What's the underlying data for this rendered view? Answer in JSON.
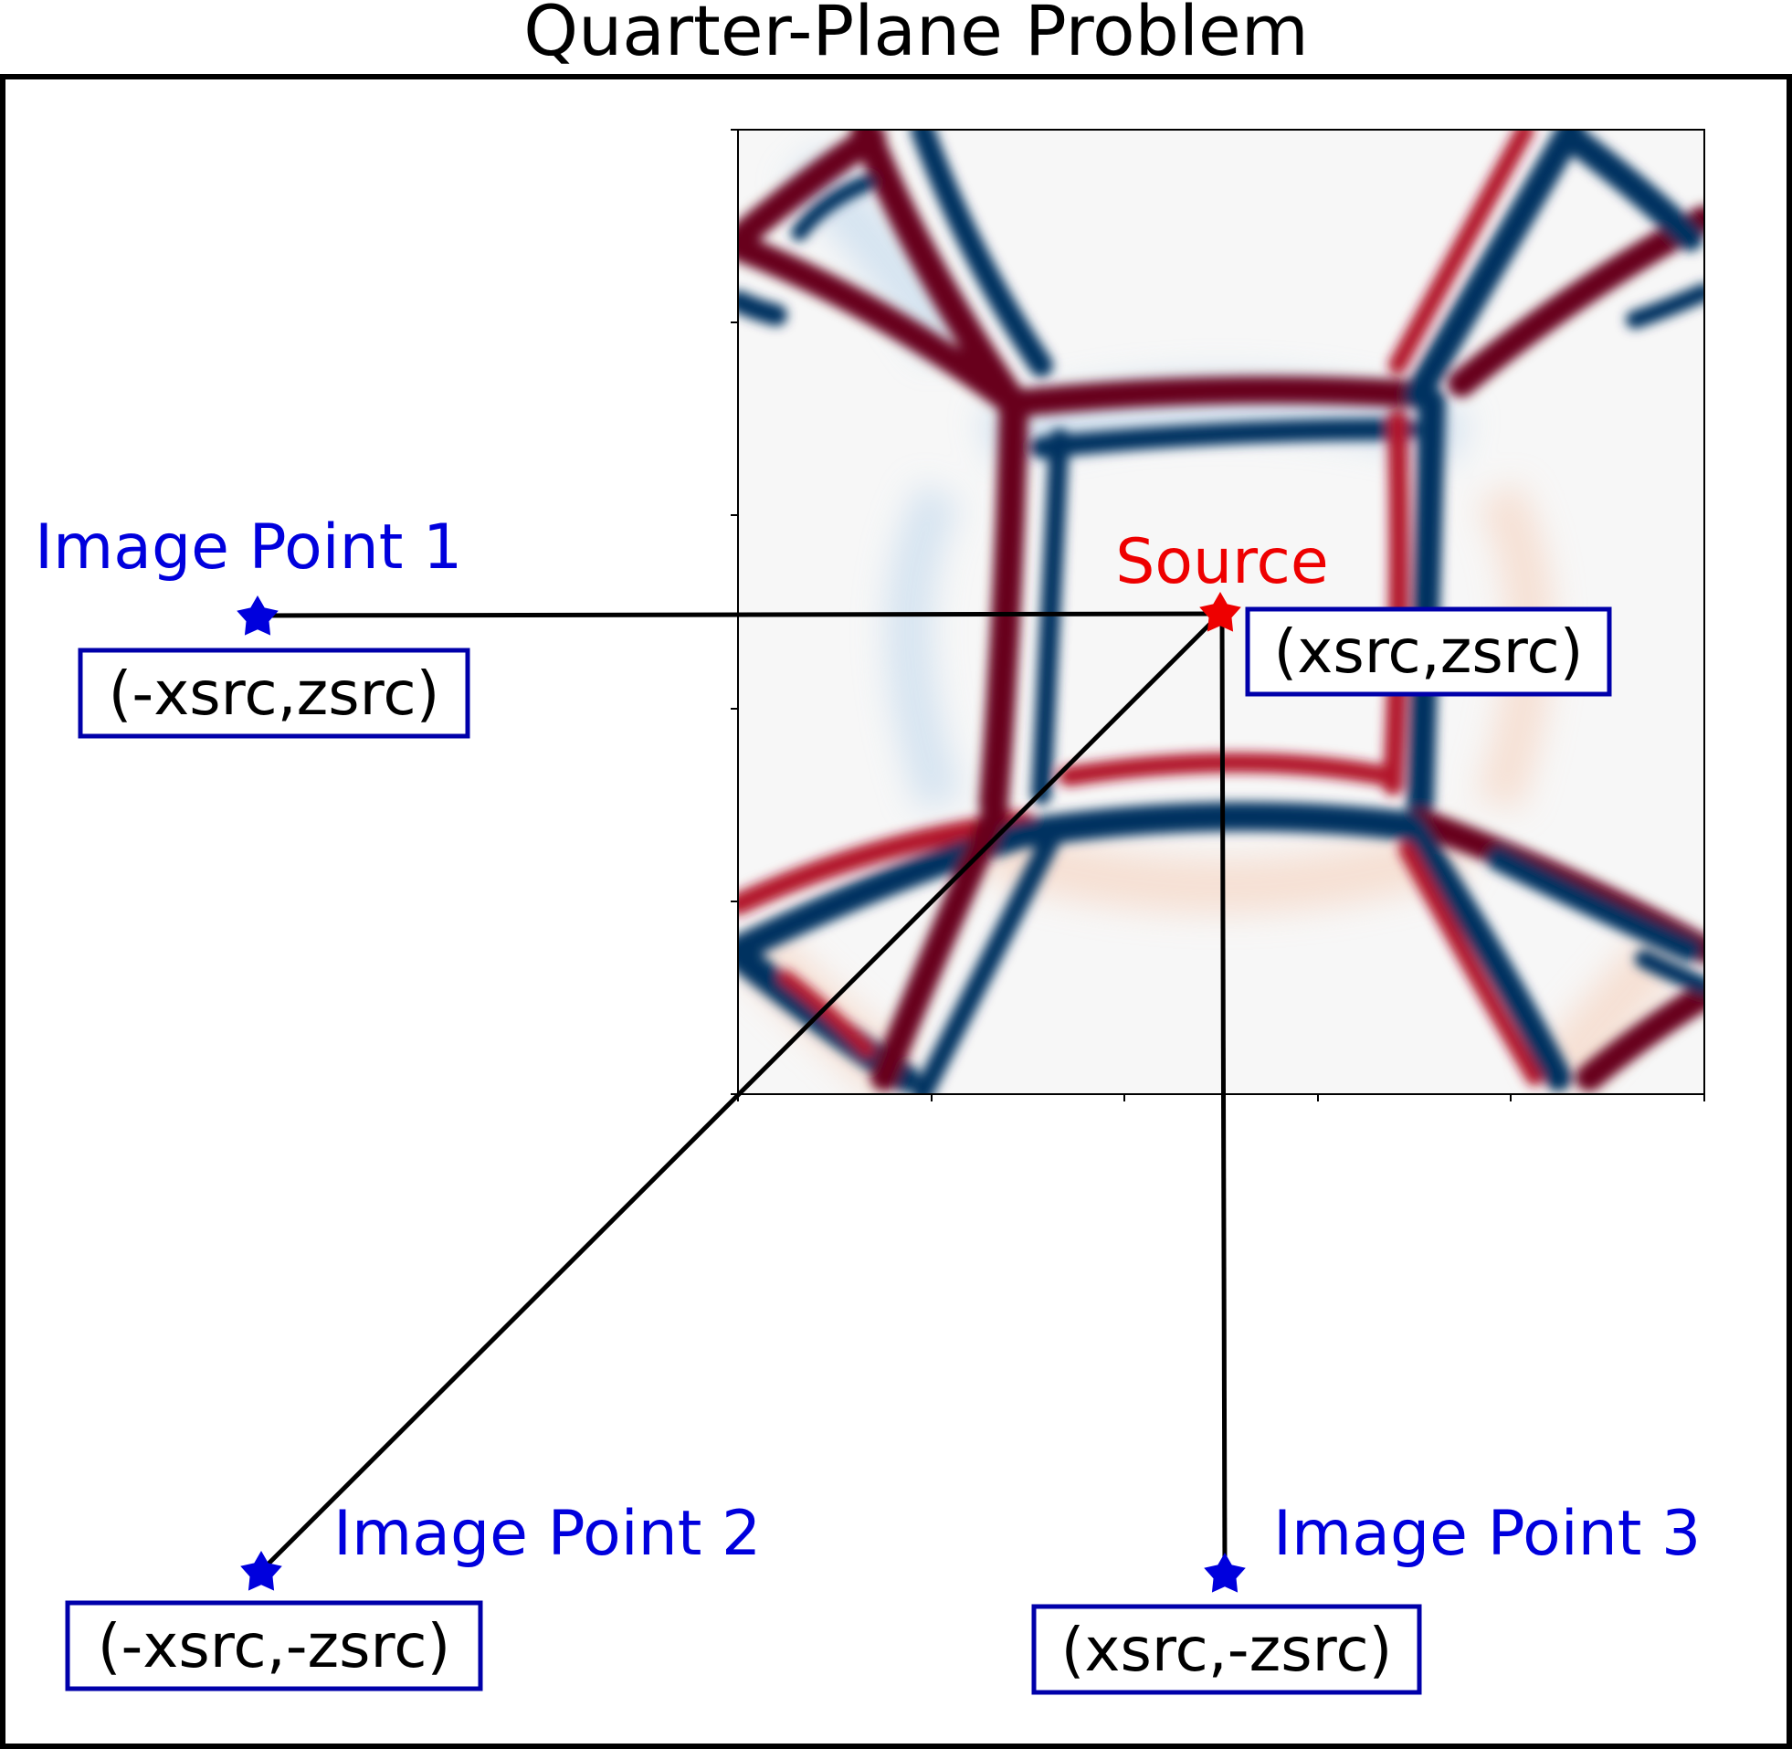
{
  "title": "Quarter-Plane Problem",
  "colors": {
    "frame": "#000000",
    "image_point": "#0000dd",
    "source": "#ee0000",
    "coord_box_border": "#0000aa",
    "wave_positive": "#67001f",
    "wave_negative": "#053061",
    "background_field": "#f7f7f7"
  },
  "source": {
    "label": "Source",
    "coords": "(xsrc,zsrc)",
    "marker": "red-star-icon"
  },
  "image_points": [
    {
      "label": "Image Point 1",
      "coords": "(-xsrc,zsrc)",
      "marker": "blue-star-icon"
    },
    {
      "label": "Image Point 2",
      "coords": "(-xsrc,-zsrc)",
      "marker": "blue-star-icon"
    },
    {
      "label": "Image Point 3",
      "coords": "(xsrc,-zsrc)",
      "marker": "blue-star-icon"
    }
  ]
}
